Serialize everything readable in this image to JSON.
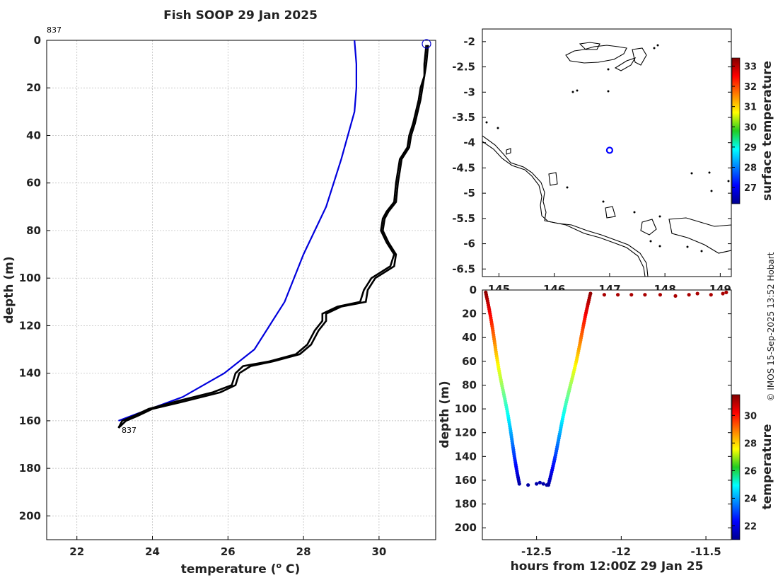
{
  "chart_data": [
    {
      "id": "profile",
      "type": "line",
      "title": "Fish SOOP 29 Jan 2025",
      "xlabel": "temperature (",
      "xlabel_sup": "o",
      "xlabel_unit": " C)",
      "ylabel": "depth (m)",
      "xlim": [
        21.2,
        31.5
      ],
      "ylim": [
        210,
        0
      ],
      "xticks": [
        22,
        24,
        26,
        28,
        30
      ],
      "yticks": [
        0,
        20,
        40,
        60,
        80,
        100,
        120,
        140,
        160,
        180,
        200
      ],
      "annotations": [
        {
          "text": "837",
          "x": 21.2,
          "y": -4.5
        },
        {
          "text": "837",
          "x": 23.2,
          "y": 164
        }
      ],
      "series": [
        {
          "name": "climatology",
          "color": "#0000dd",
          "x": [
            29.35,
            29.4,
            29.4,
            29.35,
            29.0,
            28.6,
            28.0,
            27.5,
            26.7,
            25.9,
            24.8,
            23.6,
            23.1
          ],
          "y": [
            0,
            10,
            20,
            30,
            50,
            70,
            90,
            110,
            130,
            140,
            150,
            157,
            160
          ]
        },
        {
          "name": "downcast",
          "color": "#000000",
          "x": [
            31.25,
            31.2,
            31.2,
            31.1,
            31.05,
            30.9,
            30.8,
            30.75,
            30.55,
            30.5,
            30.45,
            30.4,
            30.2,
            30.1,
            30.05,
            30.2,
            30.4,
            30.3,
            29.8,
            29.6,
            29.5,
            28.9,
            28.5,
            28.5,
            28.3,
            28.1,
            27.8,
            27.1,
            26.4,
            26.2,
            26.1,
            25.6,
            24.6,
            23.9,
            23.5,
            23.2,
            23.1
          ],
          "y": [
            2,
            10,
            15,
            20,
            25,
            35,
            40,
            45,
            50,
            55,
            60,
            68,
            72,
            75,
            80,
            85,
            90,
            95,
            100,
            105,
            110,
            112,
            115,
            118,
            122,
            128,
            132,
            135,
            137,
            140,
            145,
            148,
            152,
            155,
            158,
            160,
            163
          ]
        },
        {
          "name": "upcast",
          "color": "#000000",
          "x": [
            31.3,
            31.25,
            31.2,
            31.15,
            31.1,
            30.95,
            30.85,
            30.8,
            30.6,
            30.55,
            30.5,
            30.45,
            30.25,
            30.15,
            30.1,
            30.25,
            30.45,
            30.4,
            29.9,
            29.7,
            29.65,
            29.0,
            28.6,
            28.6,
            28.4,
            28.2,
            27.9,
            27.2,
            26.6,
            26.3,
            26.2,
            25.8,
            24.8,
            24.0,
            23.6,
            23.3,
            23.1
          ],
          "y": [
            2,
            10,
            15,
            20,
            25,
            35,
            40,
            45,
            50,
            55,
            60,
            68,
            72,
            75,
            80,
            85,
            90,
            95,
            100,
            105,
            110,
            112,
            115,
            118,
            122,
            128,
            132,
            135,
            137,
            140,
            145,
            148,
            152,
            155,
            158,
            160,
            163
          ]
        }
      ]
    },
    {
      "id": "map",
      "type": "scatter",
      "xlim": [
        144.7,
        149.2
      ],
      "ylim": [
        -6.65,
        -1.75
      ],
      "xticks": [
        145,
        146,
        147,
        148,
        149
      ],
      "yticks": [
        -2,
        -2.5,
        -3,
        -3.5,
        -4,
        -4.5,
        -5,
        -5.5,
        -6,
        -6.5
      ],
      "marker": {
        "lon": 147.0,
        "lat": -4.15,
        "color": "#0000ff"
      },
      "colorbar": {
        "label": "surface temperature",
        "min": 26.2,
        "max": 33.4,
        "ticks": [
          27,
          28,
          29,
          30,
          31,
          32,
          33
        ]
      }
    },
    {
      "id": "section",
      "type": "scatter",
      "xlabel": "hours from 12:00Z 29 Jan 25",
      "ylabel": "depth (m)",
      "xlim": [
        -12.82,
        -11.35
      ],
      "ylim": [
        210,
        0
      ],
      "xticks": [
        -12.5,
        -12,
        -11.5
      ],
      "yticks": [
        0,
        20,
        40,
        60,
        80,
        100,
        120,
        140,
        160,
        180,
        200
      ],
      "descent": {
        "x0": -12.8,
        "x1": -12.6,
        "y0": 2,
        "y1": 163
      },
      "bottom": [
        {
          "x": -12.55,
          "y": 164
        },
        {
          "x": -12.5,
          "y": 163
        },
        {
          "x": -12.48,
          "y": 162
        },
        {
          "x": -12.46,
          "y": 163
        },
        {
          "x": -12.44,
          "y": 164
        }
      ],
      "ascent": {
        "x0": -12.43,
        "x1": -12.18,
        "y0": 164,
        "y1": 3
      },
      "surface_points": [
        {
          "x": -12.1,
          "y": 4
        },
        {
          "x": -12.02,
          "y": 4
        },
        {
          "x": -11.94,
          "y": 4
        },
        {
          "x": -11.86,
          "y": 4
        },
        {
          "x": -11.77,
          "y": 4
        },
        {
          "x": -11.68,
          "y": 5
        },
        {
          "x": -11.6,
          "y": 4
        },
        {
          "x": -11.55,
          "y": 3
        },
        {
          "x": -11.47,
          "y": 4
        },
        {
          "x": -11.4,
          "y": 3
        },
        {
          "x": -11.38,
          "y": 2
        }
      ],
      "colorbar": {
        "label": "temperature",
        "min": 21.0,
        "max": 31.5,
        "ticks": [
          22,
          24,
          26,
          28,
          30
        ]
      }
    }
  ],
  "credit": "© IMOS 15-Sep-2025 13:52 Hobart"
}
